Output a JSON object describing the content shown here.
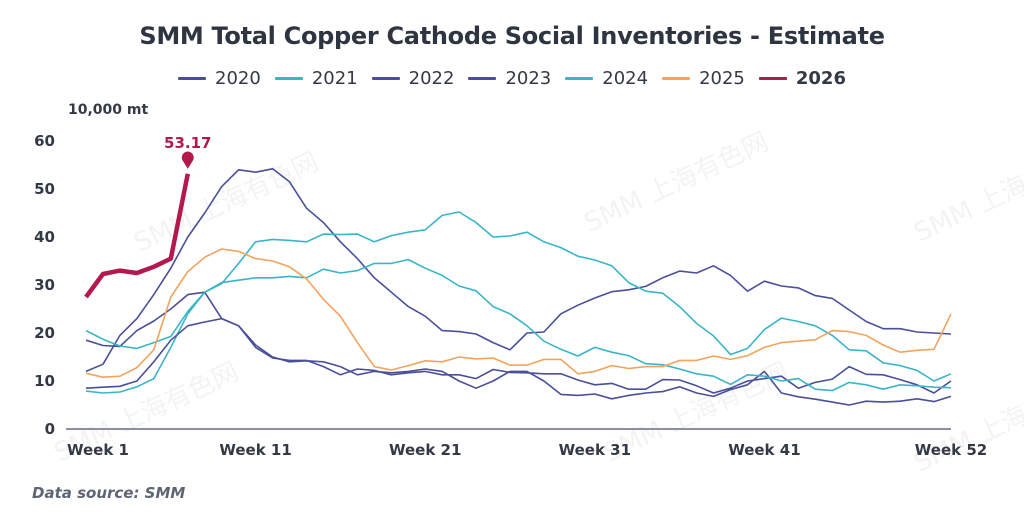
{
  "chart_data": {
    "type": "line",
    "title": "SMM Total Copper Cathode Social Inventories - Estimate",
    "ylabel": "10,000 mt",
    "xlabel": "",
    "ylim": [
      0,
      60
    ],
    "yticks": [
      0,
      10,
      20,
      30,
      40,
      50,
      60
    ],
    "xlim": [
      1,
      52
    ],
    "xticks": [
      {
        "week": 1,
        "label": "Week 1"
      },
      {
        "week": 11,
        "label": "Week 11"
      },
      {
        "week": 21,
        "label": "Week 21"
      },
      {
        "week": 31,
        "label": "Week 31"
      },
      {
        "week": 41,
        "label": "Week 41"
      },
      {
        "week": 52,
        "label": "Week 52"
      }
    ],
    "grid": false,
    "legend_position": "top-center",
    "series": [
      {
        "name": "2020",
        "color": "#4a4f9a",
        "bold": false,
        "values": [
          12.0,
          13.5,
          19.5,
          23.0,
          28.0,
          33.5,
          40.0,
          45.0,
          50.5,
          54.0,
          53.5,
          54.2,
          51.5,
          46.0,
          43.0,
          39.0,
          35.5,
          31.5,
          28.5,
          25.5,
          23.5,
          20.5,
          20.3,
          19.8,
          18.0,
          16.5,
          20.0,
          20.2,
          24.0,
          25.8,
          27.3,
          28.6,
          29.0,
          29.7,
          31.5,
          32.9,
          32.5,
          34.0,
          32.0,
          28.7,
          30.8,
          29.8,
          29.4,
          27.8,
          27.2,
          24.8,
          22.4,
          20.9,
          20.9,
          20.2,
          20.0,
          19.8
        ]
      },
      {
        "name": "2021",
        "color": "#3ab5c8",
        "bold": false,
        "values": [
          7.9,
          7.5,
          7.7,
          8.8,
          10.5,
          17.0,
          24.0,
          28.5,
          30.3,
          34.5,
          39.0,
          39.5,
          39.3,
          39.0,
          40.6,
          40.5,
          40.6,
          39.0,
          40.3,
          41.0,
          41.5,
          44.5,
          45.2,
          43.0,
          40.0,
          40.2,
          41.0,
          39.0,
          37.8,
          36.0,
          35.2,
          34.0,
          30.5,
          28.7,
          28.3,
          25.5,
          22.0,
          19.4,
          15.5,
          16.8,
          20.7,
          23.1,
          22.4,
          21.5,
          19.5,
          16.5,
          16.3,
          13.8,
          13.2,
          12.2,
          10.0,
          11.5
        ]
      },
      {
        "name": "2022",
        "color": "#4a4f9a",
        "bold": false,
        "values": [
          18.5,
          17.4,
          17.2,
          20.5,
          22.5,
          25.0,
          28.0,
          28.5,
          23.0,
          21.5,
          17.5,
          15.0,
          14.0,
          14.2,
          14.0,
          13.0,
          11.3,
          12.0,
          11.7,
          12.0,
          12.5,
          12.0,
          10.0,
          8.5,
          10.0,
          12.0,
          12.0,
          10.0,
          7.2,
          7.0,
          7.3,
          6.3,
          7.0,
          7.5,
          7.8,
          8.8,
          7.5,
          6.8,
          8.2,
          9.2,
          12.0,
          7.5,
          6.7,
          6.2,
          5.6,
          5.0,
          5.8,
          5.6,
          5.8,
          6.3,
          5.7,
          6.8
        ]
      },
      {
        "name": "2023",
        "color": "#4a4f9a",
        "bold": false,
        "values": [
          8.5,
          8.7,
          8.9,
          10.0,
          14.0,
          18.5,
          21.5,
          22.3,
          23.0,
          21.5,
          17.0,
          14.8,
          14.3,
          14.3,
          13.0,
          11.3,
          12.5,
          12.2,
          11.3,
          11.7,
          12.0,
          11.3,
          11.3,
          10.5,
          12.4,
          11.8,
          11.7,
          11.5,
          11.5,
          10.2,
          9.2,
          9.5,
          8.3,
          8.3,
          10.3,
          10.2,
          9.0,
          7.5,
          8.5,
          10.0,
          10.5,
          11.0,
          8.5,
          9.7,
          10.4,
          13.0,
          11.4,
          11.3,
          10.3,
          9.2,
          7.5,
          10.0
        ]
      },
      {
        "name": "2024",
        "color": "#3ab5c8",
        "bold": false,
        "values": [
          20.5,
          18.7,
          17.3,
          16.8,
          18.0,
          19.3,
          24.5,
          28.5,
          30.5,
          31.0,
          31.5,
          31.5,
          31.8,
          31.5,
          33.3,
          32.5,
          33.0,
          34.5,
          34.5,
          35.3,
          33.5,
          32.0,
          29.8,
          28.8,
          25.5,
          24.0,
          21.5,
          18.3,
          16.6,
          15.2,
          17.0,
          16.0,
          15.3,
          13.6,
          13.4,
          12.5,
          11.5,
          11.0,
          9.3,
          11.3,
          11.0,
          10.0,
          10.5,
          8.3,
          8.0,
          9.7,
          9.2,
          8.3,
          9.2,
          9.0,
          8.7,
          8.6
        ]
      },
      {
        "name": "2025",
        "color": "#f2a35e",
        "bold": false,
        "values": [
          11.6,
          10.8,
          11.0,
          12.8,
          16.5,
          27.5,
          32.8,
          35.8,
          37.5,
          37.0,
          35.5,
          35.0,
          33.8,
          31.3,
          27.0,
          23.5,
          18.0,
          13.0,
          12.3,
          13.2,
          14.2,
          14.0,
          15.0,
          14.6,
          14.8,
          13.3,
          13.3,
          14.5,
          14.5,
          11.5,
          12.0,
          13.2,
          12.6,
          13.0,
          13.0,
          14.3,
          14.3,
          15.2,
          14.5,
          15.3,
          17.0,
          18.0,
          18.3,
          18.6,
          20.5,
          20.3,
          19.5,
          17.5,
          16.0,
          16.4,
          16.6,
          24.0
        ]
      },
      {
        "name": "2026",
        "color": "#b3194a",
        "bold": true,
        "values": [
          27.5,
          32.3,
          33.0,
          32.5,
          33.8,
          35.5,
          53.17
        ]
      }
    ],
    "annotations": [
      {
        "series": "2026",
        "week": 7,
        "value": 53.17,
        "label": "53.17"
      }
    ],
    "source": "Data source:  SMM",
    "watermark": "SMM 上海有色网"
  }
}
